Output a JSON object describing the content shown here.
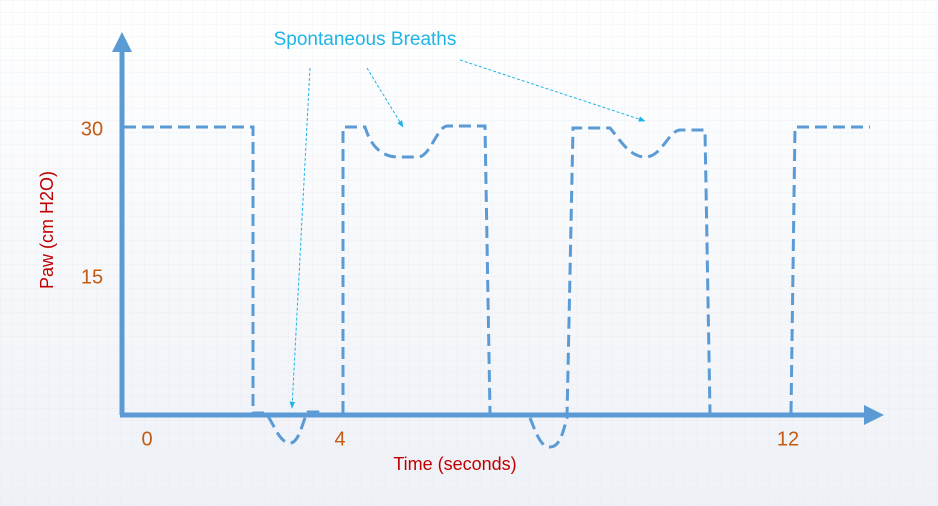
{
  "annotation": "Spontaneous Breaths",
  "y_axis": {
    "label": "Paw (cm H2O)",
    "ticks": [
      "30",
      "15"
    ]
  },
  "x_axis": {
    "label": "Time (seconds)",
    "ticks": [
      "0",
      "4",
      "12"
    ]
  }
}
